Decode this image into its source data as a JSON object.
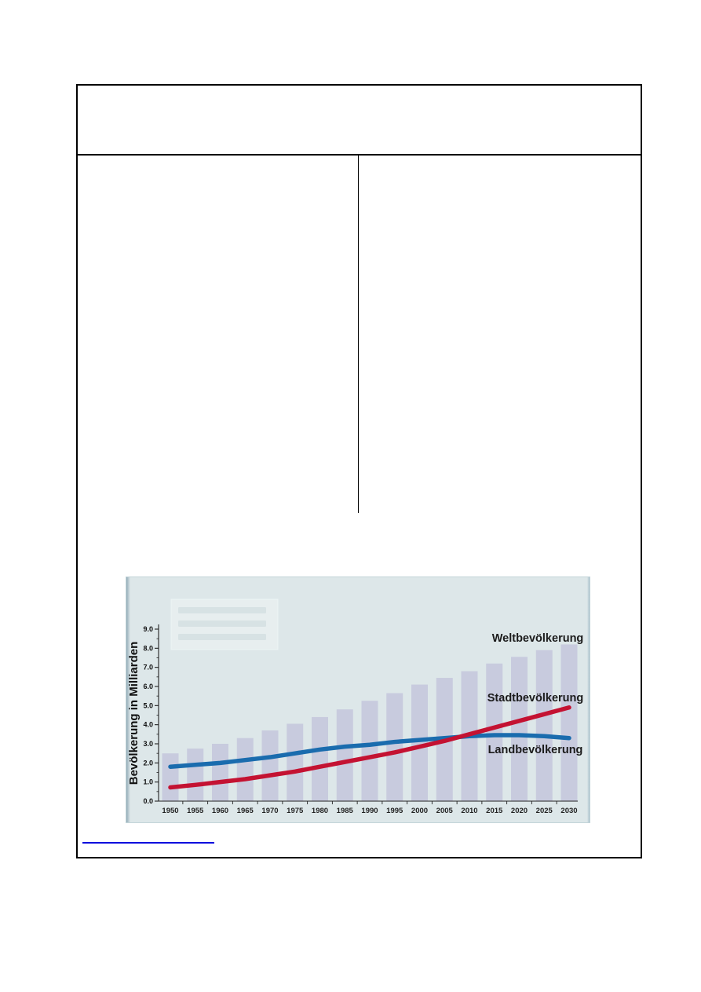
{
  "document": {
    "footer_link": {
      "text": "",
      "color": "#0000dd"
    }
  },
  "chart_data": {
    "type": "bar",
    "title": "",
    "xlabel": "",
    "ylabel": "Bevölkerung in Milliarden",
    "ylim": [
      0,
      9
    ],
    "grid": false,
    "background": "#dde7e9",
    "legend": {
      "position": "top-left",
      "faded": true,
      "legible": false,
      "rows": 3
    },
    "categories": [
      "1950",
      "1955",
      "1960",
      "1965",
      "1970",
      "1975",
      "1980",
      "1985",
      "1990",
      "1995",
      "2000",
      "2005",
      "2010",
      "2015",
      "2020",
      "2025",
      "2030"
    ],
    "yticks": [
      "0.0",
      "1.0",
      "2.0",
      "3.0",
      "4.0",
      "5.0",
      "6.0",
      "7.0",
      "8.0",
      "9.0"
    ],
    "series": [
      {
        "name": "Weltbevölkerung",
        "render": "bar",
        "color": "#c8cbde",
        "values": [
          2.5,
          2.75,
          3.0,
          3.3,
          3.7,
          4.05,
          4.4,
          4.8,
          5.25,
          5.65,
          6.1,
          6.45,
          6.8,
          7.2,
          7.55,
          7.9,
          8.2
        ]
      },
      {
        "name": "Landbevölkerung",
        "render": "line",
        "color": "#1a6cae",
        "values": [
          1.8,
          1.9,
          2.0,
          2.15,
          2.3,
          2.5,
          2.7,
          2.85,
          2.95,
          3.1,
          3.2,
          3.3,
          3.4,
          3.45,
          3.45,
          3.4,
          3.3
        ]
      },
      {
        "name": "Stadtbevölkerung",
        "render": "line",
        "color": "#c41232",
        "values": [
          0.72,
          0.85,
          1.0,
          1.15,
          1.35,
          1.55,
          1.8,
          2.05,
          2.3,
          2.55,
          2.85,
          3.15,
          3.5,
          3.85,
          4.2,
          4.55,
          4.9
        ]
      }
    ],
    "annotations": [
      {
        "text": "Weltbevölkerung"
      },
      {
        "text": "Stadtbevölkerung"
      },
      {
        "text": "Landbevölkerung"
      }
    ]
  }
}
